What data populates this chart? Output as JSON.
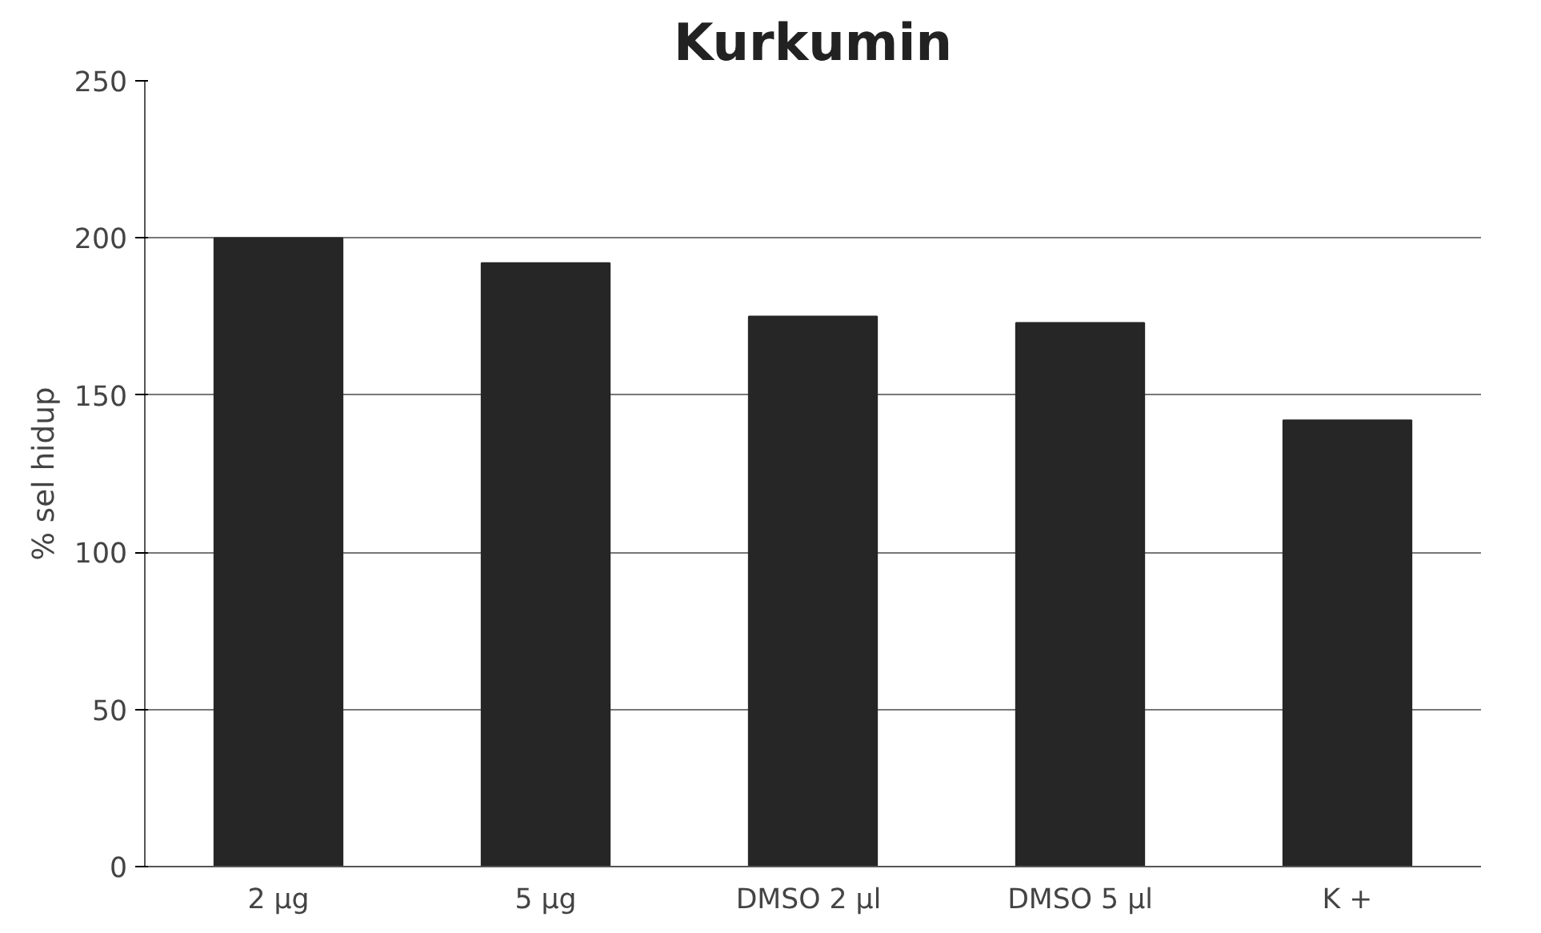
{
  "chart_data": {
    "type": "bar",
    "title": "Kurkumin",
    "ylabel": "% sel hidup",
    "categories": [
      "2 µg",
      "5 µg",
      "DMSO  2 µl",
      "DMSO 5 µl",
      "K +"
    ],
    "values": [
      200,
      192,
      175,
      173,
      142
    ],
    "color": "#262626",
    "ylim": [
      0,
      250
    ],
    "yticks": [
      0,
      50,
      100,
      150,
      200,
      250
    ],
    "grid": "y"
  }
}
